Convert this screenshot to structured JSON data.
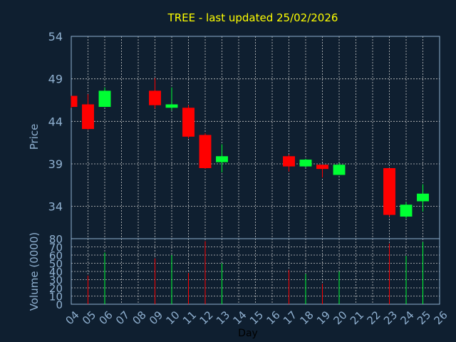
{
  "chart_data": {
    "type": "candlestick",
    "title": "TREE - last updated 25/02/2026",
    "xlabel": "Day",
    "ylabel": "Price",
    "volume_label": "Volume (0000)",
    "x_ticks": [
      "04",
      "05",
      "06",
      "07",
      "08",
      "09",
      "10",
      "11",
      "12",
      "13",
      "14",
      "15",
      "16",
      "17",
      "18",
      "19",
      "20",
      "21",
      "22",
      "23",
      "24",
      "25",
      "26"
    ],
    "price_ticks": [
      34,
      39,
      44,
      49,
      54
    ],
    "price_ylim": [
      30.2,
      54
    ],
    "volume_ticks": [
      0,
      10,
      20,
      30,
      40,
      50,
      60,
      70,
      80
    ],
    "volume_ylim": [
      0,
      80
    ],
    "grid": true,
    "candles": [
      {
        "day": "04",
        "open": 47.0,
        "high": 47.0,
        "low": 45.6,
        "close": 45.7,
        "volume": 0
      },
      {
        "day": "05",
        "open": 46.0,
        "high": 47.2,
        "low": 43.0,
        "close": 43.1,
        "volume": 35
      },
      {
        "day": "06",
        "open": 45.7,
        "high": 48.0,
        "low": 45.7,
        "close": 47.6,
        "volume": 63
      },
      {
        "day": "09",
        "open": 47.6,
        "high": 49.1,
        "low": 45.5,
        "close": 45.9,
        "volume": 56
      },
      {
        "day": "10",
        "open": 45.6,
        "high": 48.0,
        "low": 45.3,
        "close": 46.0,
        "volume": 60
      },
      {
        "day": "11",
        "open": 45.6,
        "high": 45.9,
        "low": 42.0,
        "close": 42.2,
        "volume": 38
      },
      {
        "day": "12",
        "open": 42.4,
        "high": 42.6,
        "low": 38.4,
        "close": 38.5,
        "volume": 77
      },
      {
        "day": "13",
        "open": 39.2,
        "high": 41.3,
        "low": 38.0,
        "close": 39.9,
        "volume": 50
      },
      {
        "day": "17",
        "open": 39.9,
        "high": 40.1,
        "low": 38.1,
        "close": 38.7,
        "volume": 42
      },
      {
        "day": "18",
        "open": 38.7,
        "high": 39.6,
        "low": 38.6,
        "close": 39.5,
        "volume": 37
      },
      {
        "day": "19",
        "open": 38.9,
        "high": 38.9,
        "low": 37.4,
        "close": 38.4,
        "volume": 25
      },
      {
        "day": "20",
        "open": 37.7,
        "high": 39.1,
        "low": 37.7,
        "close": 38.9,
        "volume": 40
      },
      {
        "day": "23",
        "open": 38.5,
        "high": 38.5,
        "low": 32.8,
        "close": 33.0,
        "volume": 74
      },
      {
        "day": "24",
        "open": 32.8,
        "high": 34.5,
        "low": 32.6,
        "close": 34.2,
        "volume": 59
      },
      {
        "day": "25",
        "open": 34.6,
        "high": 36.6,
        "low": 33.4,
        "close": 35.5,
        "volume": 76
      }
    ],
    "colors": {
      "background": "#0f1f30",
      "up": "#00ff33",
      "down": "#ff0000",
      "title": "#ffff00",
      "axis_text": "#8fb0d0",
      "grid": "#c8c8c8",
      "frame": "#8fb0d0"
    }
  }
}
